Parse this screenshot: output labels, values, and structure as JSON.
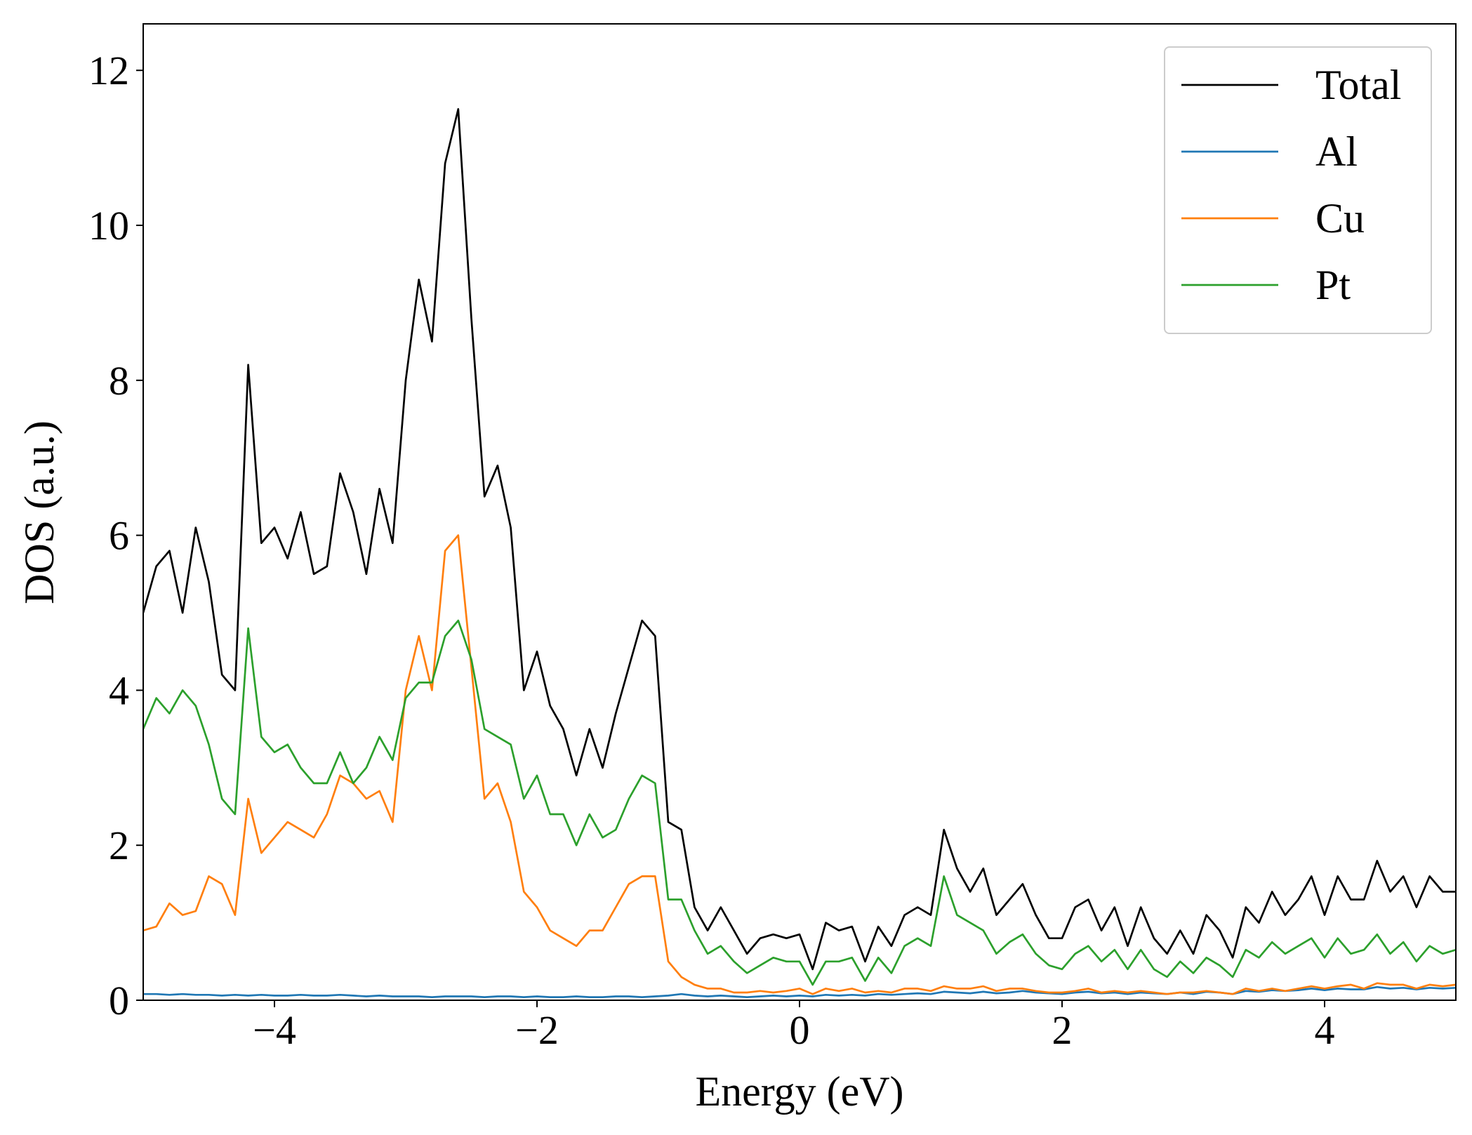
{
  "chart_data": {
    "type": "line",
    "xlabel": "Energy (eV)",
    "ylabel": "DOS (a.u.)",
    "xlim": [
      -5,
      5
    ],
    "ylim": [
      0,
      12.6
    ],
    "xticks": [
      {
        "value": -4,
        "label": "−4"
      },
      {
        "value": -2,
        "label": "−2"
      },
      0,
      2,
      4
    ],
    "yticks": [
      0,
      2,
      4,
      6,
      8,
      10,
      12
    ],
    "legend": "upper right",
    "grid": false,
    "x": [
      -5.0,
      -4.9,
      -4.8,
      -4.7,
      -4.6,
      -4.5,
      -4.4,
      -4.3,
      -4.2,
      -4.1,
      -4.0,
      -3.9,
      -3.8,
      -3.7,
      -3.6,
      -3.5,
      -3.4,
      -3.3,
      -3.2,
      -3.1,
      -3.0,
      -2.9,
      -2.8,
      -2.7,
      -2.6,
      -2.5,
      -2.4,
      -2.3,
      -2.2,
      -2.1,
      -2.0,
      -1.9,
      -1.8,
      -1.7,
      -1.6,
      -1.5,
      -1.4,
      -1.3,
      -1.2,
      -1.1,
      -1.0,
      -0.9,
      -0.8,
      -0.7,
      -0.6,
      -0.5,
      -0.4,
      -0.3,
      -0.2,
      -0.1,
      0.0,
      0.1,
      0.2,
      0.3,
      0.4,
      0.5,
      0.6,
      0.7,
      0.8,
      0.9,
      1.0,
      1.1,
      1.2,
      1.3,
      1.4,
      1.5,
      1.6,
      1.7,
      1.8,
      1.9,
      2.0,
      2.1,
      2.2,
      2.3,
      2.4,
      2.5,
      2.6,
      2.7,
      2.8,
      2.9,
      3.0,
      3.1,
      3.2,
      3.3,
      3.4,
      3.5,
      3.6,
      3.7,
      3.8,
      3.9,
      4.0,
      4.1,
      4.2,
      4.3,
      4.4,
      4.5,
      4.6,
      4.7,
      4.8,
      4.9,
      5.0
    ],
    "series": [
      {
        "name": "Total",
        "color": "#000000",
        "values": [
          5.0,
          5.6,
          5.8,
          5.0,
          6.1,
          5.4,
          4.2,
          4.0,
          8.2,
          5.9,
          6.1,
          5.7,
          6.3,
          5.5,
          5.6,
          6.8,
          6.3,
          5.5,
          6.6,
          5.9,
          8.0,
          9.3,
          8.5,
          10.8,
          11.5,
          8.8,
          6.5,
          6.9,
          6.1,
          4.0,
          4.5,
          3.8,
          3.5,
          2.9,
          3.5,
          3.0,
          3.7,
          4.3,
          4.9,
          4.7,
          2.3,
          2.2,
          1.2,
          0.9,
          1.2,
          0.9,
          0.6,
          0.8,
          0.85,
          0.8,
          0.85,
          0.4,
          1.0,
          0.9,
          0.95,
          0.5,
          0.95,
          0.7,
          1.1,
          1.2,
          1.1,
          2.2,
          1.7,
          1.4,
          1.7,
          1.1,
          1.3,
          1.5,
          1.1,
          0.8,
          0.8,
          1.2,
          1.3,
          0.9,
          1.2,
          0.7,
          1.2,
          0.8,
          0.6,
          0.9,
          0.6,
          1.1,
          0.9,
          0.55,
          1.2,
          1.0,
          1.4,
          1.1,
          1.3,
          1.6,
          1.1,
          1.6,
          1.3,
          1.3,
          1.8,
          1.4,
          1.6,
          1.2,
          1.6,
          1.4,
          1.4
        ]
      },
      {
        "name": "Al",
        "color": "#1f77b4",
        "values": [
          0.08,
          0.08,
          0.07,
          0.08,
          0.07,
          0.07,
          0.06,
          0.07,
          0.06,
          0.07,
          0.06,
          0.06,
          0.07,
          0.06,
          0.06,
          0.07,
          0.06,
          0.05,
          0.06,
          0.05,
          0.05,
          0.05,
          0.04,
          0.05,
          0.05,
          0.05,
          0.04,
          0.05,
          0.05,
          0.04,
          0.05,
          0.04,
          0.04,
          0.05,
          0.04,
          0.04,
          0.05,
          0.05,
          0.04,
          0.05,
          0.06,
          0.08,
          0.06,
          0.05,
          0.06,
          0.05,
          0.04,
          0.05,
          0.06,
          0.05,
          0.06,
          0.05,
          0.07,
          0.06,
          0.07,
          0.06,
          0.08,
          0.07,
          0.08,
          0.09,
          0.08,
          0.11,
          0.1,
          0.09,
          0.11,
          0.09,
          0.1,
          0.12,
          0.1,
          0.09,
          0.08,
          0.1,
          0.11,
          0.09,
          0.1,
          0.08,
          0.1,
          0.09,
          0.08,
          0.1,
          0.08,
          0.11,
          0.1,
          0.08,
          0.12,
          0.11,
          0.13,
          0.12,
          0.13,
          0.15,
          0.13,
          0.15,
          0.14,
          0.14,
          0.17,
          0.15,
          0.16,
          0.14,
          0.16,
          0.15,
          0.16
        ]
      },
      {
        "name": "Cu",
        "color": "#ff7f0e",
        "values": [
          0.9,
          0.95,
          1.25,
          1.1,
          1.15,
          1.6,
          1.5,
          1.1,
          2.6,
          1.9,
          2.1,
          2.3,
          2.2,
          2.1,
          2.4,
          2.9,
          2.8,
          2.6,
          2.7,
          2.3,
          4.0,
          4.7,
          4.0,
          5.8,
          6.0,
          4.3,
          2.6,
          2.8,
          2.3,
          1.4,
          1.2,
          0.9,
          0.8,
          0.7,
          0.9,
          0.9,
          1.2,
          1.5,
          1.6,
          1.6,
          0.5,
          0.3,
          0.2,
          0.15,
          0.15,
          0.1,
          0.1,
          0.12,
          0.1,
          0.12,
          0.15,
          0.08,
          0.15,
          0.12,
          0.15,
          0.1,
          0.12,
          0.1,
          0.15,
          0.15,
          0.12,
          0.18,
          0.15,
          0.15,
          0.18,
          0.12,
          0.15,
          0.15,
          0.12,
          0.1,
          0.1,
          0.12,
          0.15,
          0.1,
          0.12,
          0.1,
          0.12,
          0.1,
          0.08,
          0.1,
          0.1,
          0.12,
          0.1,
          0.08,
          0.15,
          0.12,
          0.15,
          0.12,
          0.15,
          0.18,
          0.15,
          0.18,
          0.2,
          0.15,
          0.22,
          0.2,
          0.2,
          0.15,
          0.2,
          0.18,
          0.2
        ]
      },
      {
        "name": "Pt",
        "color": "#2ca02c",
        "values": [
          3.5,
          3.9,
          3.7,
          4.0,
          3.8,
          3.3,
          2.6,
          2.4,
          4.8,
          3.4,
          3.2,
          3.3,
          3.0,
          2.8,
          2.8,
          3.2,
          2.8,
          3.0,
          3.4,
          3.1,
          3.9,
          4.1,
          4.1,
          4.7,
          4.9,
          4.4,
          3.5,
          3.4,
          3.3,
          2.6,
          2.9,
          2.4,
          2.4,
          2.0,
          2.4,
          2.1,
          2.2,
          2.6,
          2.9,
          2.8,
          1.3,
          1.3,
          0.9,
          0.6,
          0.7,
          0.5,
          0.35,
          0.45,
          0.55,
          0.5,
          0.5,
          0.2,
          0.5,
          0.5,
          0.55,
          0.25,
          0.55,
          0.35,
          0.7,
          0.8,
          0.7,
          1.6,
          1.1,
          1.0,
          0.9,
          0.6,
          0.75,
          0.85,
          0.6,
          0.45,
          0.4,
          0.6,
          0.7,
          0.5,
          0.65,
          0.4,
          0.65,
          0.4,
          0.3,
          0.5,
          0.35,
          0.55,
          0.45,
          0.3,
          0.65,
          0.55,
          0.75,
          0.6,
          0.7,
          0.8,
          0.55,
          0.8,
          0.6,
          0.65,
          0.85,
          0.6,
          0.75,
          0.5,
          0.7,
          0.6,
          0.65
        ]
      }
    ]
  }
}
